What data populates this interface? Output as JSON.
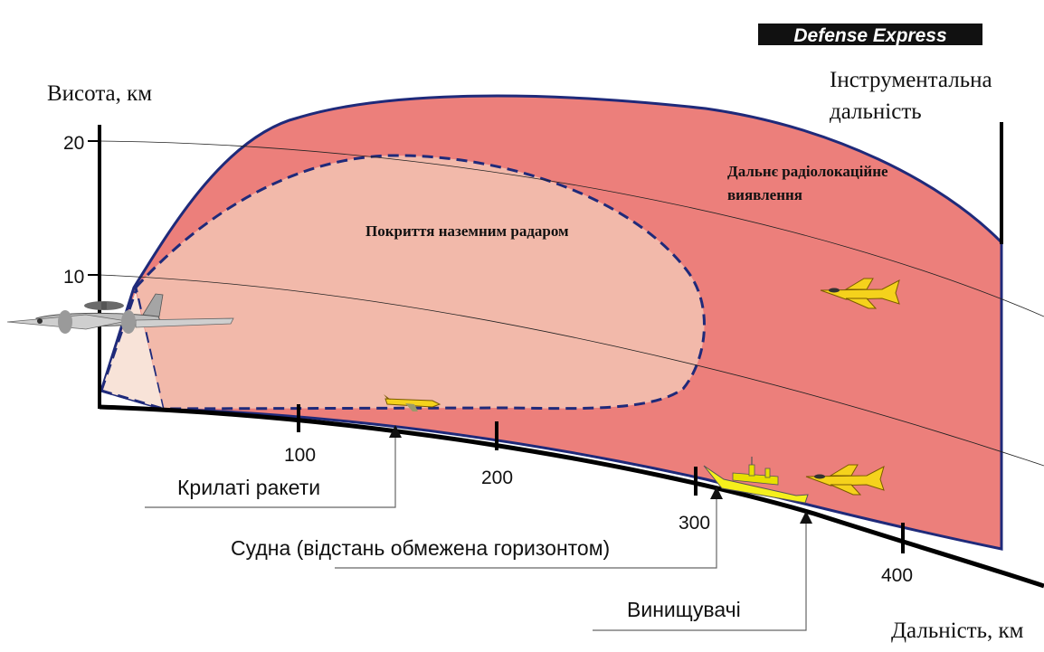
{
  "brand": {
    "name": "Defense Express"
  },
  "axes": {
    "y_label": "Висота, км",
    "y_ticks": [
      "20",
      "10"
    ],
    "x_label": "Дальність, км",
    "x_ticks": [
      "100",
      "200",
      "300",
      "400"
    ]
  },
  "zones": {
    "early_warning": {
      "label_line1": "Дальнє радіолокаційне",
      "label_line2": "виявлення",
      "color": "#ec7f7b"
    },
    "ground_radar": {
      "label": "Покриття наземним радаром",
      "color": "#f2b9aa"
    },
    "instrumental_range": {
      "label_line1": "Інструментальна",
      "label_line2": "дальність"
    }
  },
  "callouts": {
    "cruise_missiles": "Крилаті ракети",
    "ships": "Судна (відстань обмежена горизонтом)",
    "fighters": "Винищувачі"
  },
  "icons": [
    "awacs-aircraft-icon",
    "fighter-jet-icon",
    "cruise-missile-icon",
    "ship-icon"
  ],
  "colors": {
    "outline": "#1f2a7a",
    "ground": "#000000",
    "aircraft_yellow": "#f5d21c"
  }
}
